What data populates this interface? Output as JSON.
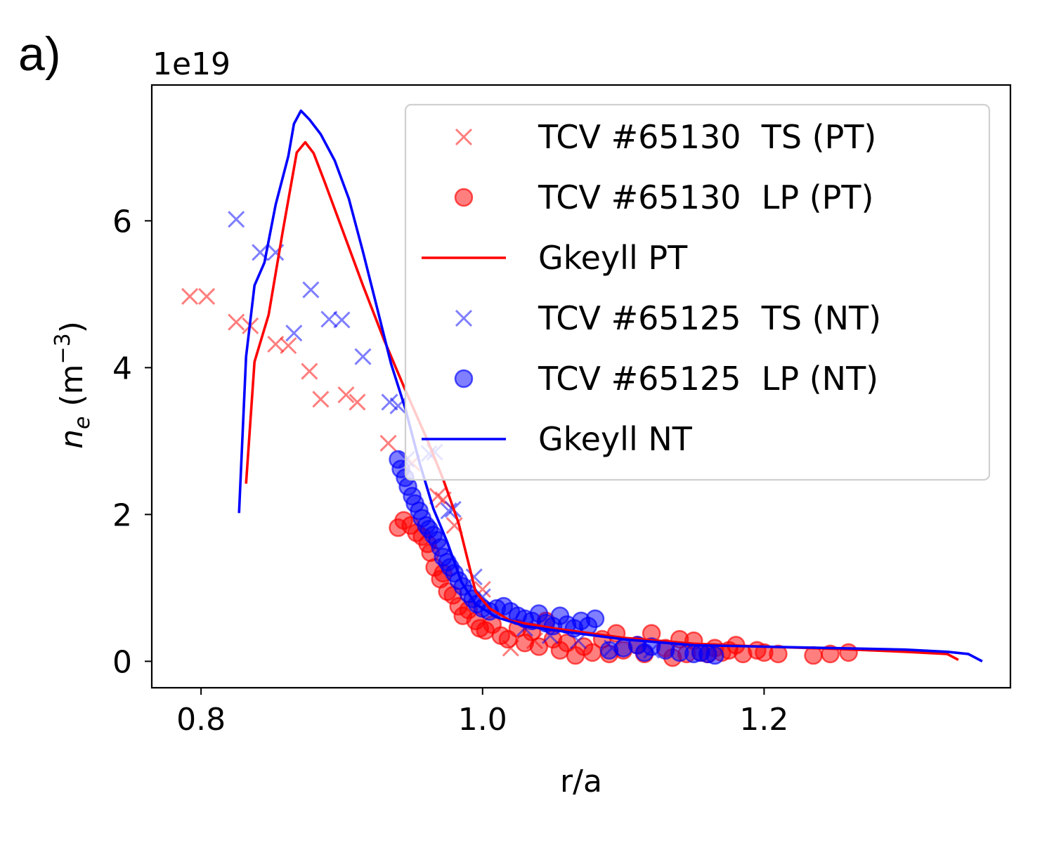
{
  "chart_data": {
    "type": "line",
    "panel_label": "a)",
    "offset_text": "1e19",
    "xlabel": "r/a",
    "ylabel_main": "n",
    "ylabel_sub": "e",
    "ylabel_unit_prefix": " (m",
    "ylabel_exponent": "−3",
    "ylabel_unit_suffix": ")",
    "xlim": [
      0.765,
      1.375
    ],
    "ylim": [
      -0.36,
      7.85
    ],
    "x_ticks": [
      0.8,
      1.0,
      1.2
    ],
    "x_tick_labels": [
      "0.8",
      "1.0",
      "1.2"
    ],
    "y_ticks": [
      0,
      2,
      4,
      6
    ],
    "y_tick_labels": [
      "0",
      "2",
      "4",
      "6"
    ],
    "legend_position": "top-right",
    "series": [
      {
        "name": "TCV #65130  TS (PT)",
        "kind": "x-marker",
        "color": "#ff0000",
        "alpha": 0.5,
        "points": [
          [
            0.792,
            4.97
          ],
          [
            0.804,
            4.97
          ],
          [
            0.825,
            4.62
          ],
          [
            0.835,
            4.57
          ],
          [
            0.853,
            4.32
          ],
          [
            0.862,
            4.3
          ],
          [
            0.877,
            3.95
          ],
          [
            0.885,
            3.57
          ],
          [
            0.903,
            3.63
          ],
          [
            0.911,
            3.53
          ],
          [
            0.933,
            2.97
          ],
          [
            0.95,
            2.7
          ],
          [
            0.968,
            2.25
          ],
          [
            0.972,
            2.2
          ],
          [
            0.98,
            1.85
          ],
          [
            1.0,
            0.98
          ],
          [
            1.02,
            0.18
          ],
          [
            1.037,
            0.28
          ]
        ]
      },
      {
        "name": "TCV #65130  LP (PT)",
        "kind": "circle-marker",
        "color": "#ff0000",
        "alpha": 0.5,
        "points": [
          [
            0.94,
            1.82
          ],
          [
            0.944,
            1.92
          ],
          [
            0.949,
            1.85
          ],
          [
            0.953,
            1.75
          ],
          [
            0.957,
            1.7
          ],
          [
            0.961,
            1.6
          ],
          [
            0.963,
            1.48
          ],
          [
            0.966,
            1.28
          ],
          [
            0.97,
            1.12
          ],
          [
            0.972,
            1.2
          ],
          [
            0.975,
            0.95
          ],
          [
            0.979,
            0.9
          ],
          [
            0.983,
            0.75
          ],
          [
            0.986,
            0.62
          ],
          [
            0.99,
            0.7
          ],
          [
            0.995,
            0.55
          ],
          [
            0.998,
            0.45
          ],
          [
            1.002,
            0.42
          ],
          [
            1.007,
            0.5
          ],
          [
            1.013,
            0.35
          ],
          [
            1.018,
            0.3
          ],
          [
            1.025,
            0.45
          ],
          [
            1.03,
            0.25
          ],
          [
            1.035,
            0.4
          ],
          [
            1.04,
            0.2
          ],
          [
            1.045,
            0.55
          ],
          [
            1.05,
            0.3
          ],
          [
            1.055,
            0.15
          ],
          [
            1.06,
            0.25
          ],
          [
            1.066,
            0.08
          ],
          [
            1.072,
            0.2
          ],
          [
            1.078,
            0.12
          ],
          [
            1.085,
            0.3
          ],
          [
            1.09,
            0.1
          ],
          [
            1.095,
            0.38
          ],
          [
            1.1,
            0.15
          ],
          [
            1.11,
            0.22
          ],
          [
            1.115,
            0.1
          ],
          [
            1.12,
            0.38
          ],
          [
            1.13,
            0.18
          ],
          [
            1.135,
            0.05
          ],
          [
            1.14,
            0.3
          ],
          [
            1.145,
            0.1
          ],
          [
            1.15,
            0.28
          ],
          [
            1.155,
            0.12
          ],
          [
            1.16,
            0.1
          ],
          [
            1.165,
            0.18
          ],
          [
            1.17,
            0.12
          ],
          [
            1.175,
            0.15
          ],
          [
            1.18,
            0.22
          ],
          [
            1.185,
            0.1
          ],
          [
            1.195,
            0.15
          ],
          [
            1.2,
            0.12
          ],
          [
            1.21,
            0.1
          ],
          [
            1.235,
            0.08
          ],
          [
            1.247,
            0.1
          ],
          [
            1.26,
            0.12
          ]
        ]
      },
      {
        "name": "Gkeyll PT",
        "kind": "line",
        "color": "#ff0000",
        "points": [
          [
            0.832,
            2.42
          ],
          [
            0.838,
            4.08
          ],
          [
            0.848,
            4.72
          ],
          [
            0.858,
            5.85
          ],
          [
            0.868,
            6.93
          ],
          [
            0.874,
            7.07
          ],
          [
            0.88,
            6.92
          ],
          [
            0.888,
            6.52
          ],
          [
            0.9,
            5.9
          ],
          [
            0.915,
            5.12
          ],
          [
            0.93,
            4.38
          ],
          [
            0.945,
            3.7
          ],
          [
            0.96,
            3.05
          ],
          [
            0.972,
            2.48
          ],
          [
            0.983,
            1.88
          ],
          [
            0.995,
            0.95
          ],
          [
            1.005,
            0.72
          ],
          [
            1.02,
            0.55
          ],
          [
            1.05,
            0.45
          ],
          [
            1.1,
            0.32
          ],
          [
            1.15,
            0.24
          ],
          [
            1.2,
            0.2
          ],
          [
            1.25,
            0.17
          ],
          [
            1.3,
            0.13
          ],
          [
            1.33,
            0.1
          ],
          [
            1.338,
            0.02
          ]
        ]
      },
      {
        "name": "TCV #65125  TS (NT)",
        "kind": "x-marker",
        "color": "#0000ff",
        "alpha": 0.5,
        "points": [
          [
            0.825,
            6.02
          ],
          [
            0.842,
            5.57
          ],
          [
            0.853,
            5.57
          ],
          [
            0.866,
            4.47
          ],
          [
            0.878,
            5.06
          ],
          [
            0.891,
            4.66
          ],
          [
            0.9,
            4.65
          ],
          [
            0.915,
            4.15
          ],
          [
            0.934,
            3.53
          ],
          [
            0.94,
            3.48
          ],
          [
            0.946,
            2.75
          ],
          [
            0.962,
            2.83
          ],
          [
            0.966,
            2.85
          ],
          [
            0.976,
            2.05
          ],
          [
            0.979,
            2.07
          ],
          [
            0.994,
            1.15
          ],
          [
            1.0,
            0.88
          ],
          [
            1.03,
            0.45
          ],
          [
            1.048,
            0.35
          ],
          [
            1.068,
            0.28
          ],
          [
            1.092,
            0.18
          ],
          [
            1.12,
            0.15
          ]
        ]
      },
      {
        "name": "TCV #65125  LP (NT)",
        "kind": "circle-marker",
        "color": "#0000ff",
        "alpha": 0.5,
        "points": [
          [
            0.94,
            2.75
          ],
          [
            0.942,
            2.62
          ],
          [
            0.945,
            2.5
          ],
          [
            0.947,
            2.38
          ],
          [
            0.95,
            2.25
          ],
          [
            0.952,
            2.15
          ],
          [
            0.955,
            2.05
          ],
          [
            0.957,
            1.95
          ],
          [
            0.96,
            1.85
          ],
          [
            0.962,
            1.8
          ],
          [
            0.965,
            1.72
          ],
          [
            0.968,
            1.65
          ],
          [
            0.97,
            1.55
          ],
          [
            0.972,
            1.42
          ],
          [
            0.975,
            1.35
          ],
          [
            0.977,
            1.28
          ],
          [
            0.98,
            1.2
          ],
          [
            0.983,
            1.1
          ],
          [
            0.986,
            1.02
          ],
          [
            0.99,
            0.92
          ],
          [
            0.993,
            0.85
          ],
          [
            0.996,
            0.78
          ],
          [
            1.0,
            0.72
          ],
          [
            1.005,
            0.68
          ],
          [
            1.01,
            0.72
          ],
          [
            1.015,
            0.75
          ],
          [
            1.02,
            0.68
          ],
          [
            1.025,
            0.62
          ],
          [
            1.03,
            0.58
          ],
          [
            1.035,
            0.55
          ],
          [
            1.04,
            0.65
          ],
          [
            1.045,
            0.52
          ],
          [
            1.05,
            0.48
          ],
          [
            1.055,
            0.62
          ],
          [
            1.06,
            0.5
          ],
          [
            1.065,
            0.45
          ],
          [
            1.07,
            0.55
          ],
          [
            1.075,
            0.48
          ],
          [
            1.08,
            0.58
          ],
          [
            1.09,
            0.15
          ],
          [
            1.1,
            0.18
          ],
          [
            1.11,
            0.22
          ],
          [
            1.115,
            0.12
          ],
          [
            1.12,
            0.2
          ],
          [
            1.13,
            0.15
          ],
          [
            1.14,
            0.12
          ],
          [
            1.15,
            0.1
          ],
          [
            1.155,
            0.12
          ],
          [
            1.16,
            0.1
          ],
          [
            1.165,
            0.08
          ]
        ]
      },
      {
        "name": "Gkeyll NT",
        "kind": "line",
        "color": "#0000ff",
        "points": [
          [
            0.827,
            2.02
          ],
          [
            0.832,
            4.15
          ],
          [
            0.838,
            5.12
          ],
          [
            0.845,
            5.43
          ],
          [
            0.853,
            6.22
          ],
          [
            0.862,
            6.88
          ],
          [
            0.866,
            7.32
          ],
          [
            0.871,
            7.5
          ],
          [
            0.877,
            7.38
          ],
          [
            0.885,
            7.18
          ],
          [
            0.895,
            6.82
          ],
          [
            0.905,
            6.3
          ],
          [
            0.915,
            5.58
          ],
          [
            0.925,
            4.82
          ],
          [
            0.935,
            4.05
          ],
          [
            0.945,
            3.45
          ],
          [
            0.955,
            2.72
          ],
          [
            0.965,
            2.08
          ],
          [
            0.975,
            1.62
          ],
          [
            0.985,
            1.08
          ],
          [
            0.995,
            0.78
          ],
          [
            1.01,
            0.6
          ],
          [
            1.03,
            0.48
          ],
          [
            1.06,
            0.4
          ],
          [
            1.1,
            0.3
          ],
          [
            1.15,
            0.22
          ],
          [
            1.2,
            0.2
          ],
          [
            1.25,
            0.18
          ],
          [
            1.3,
            0.16
          ],
          [
            1.33,
            0.13
          ],
          [
            1.345,
            0.1
          ],
          [
            1.355,
            0.0
          ]
        ]
      }
    ]
  }
}
